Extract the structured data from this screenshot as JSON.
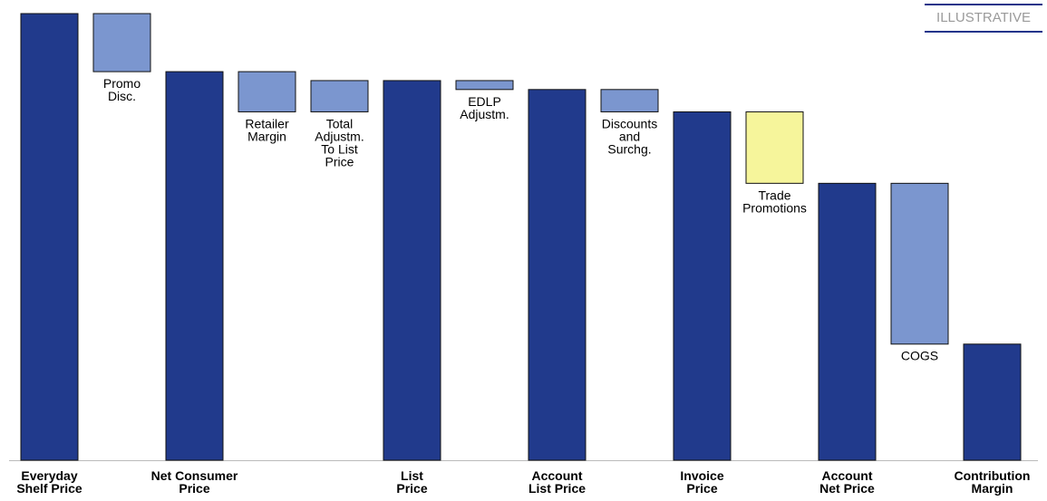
{
  "chart_data": {
    "type": "waterfall",
    "badge": "ILLUSTRATIVE",
    "categories": [
      "Everyday\nShelf Price",
      "Promo\nDisc.",
      "Net Consumer\nPrice",
      "Retailer\nMargin",
      "Total\nAdjustm.\nTo List\nPrice",
      "List\nPrice",
      "EDLP\nAdjustm.",
      "Account\nList Price",
      "Discounts\nand\nSurchg.",
      "Invoice\nPrice",
      "Trade\nPromotions",
      "Account\nNet Price",
      "COGS",
      "Contribution\nMargin"
    ],
    "measures": [
      "absolute",
      "relative",
      "absolute",
      "relative",
      "relative",
      "absolute",
      "relative",
      "absolute",
      "relative",
      "absolute",
      "relative",
      "absolute",
      "relative",
      "absolute"
    ],
    "values": [
      100,
      -13,
      87,
      -9,
      7,
      85,
      -2,
      83,
      -5,
      78,
      -16,
      62,
      -36,
      26
    ],
    "colors": [
      "#213a8c",
      "#7b96cf",
      "#213a8c",
      "#7b96cf",
      "#7b96cf",
      "#213a8c",
      "#7b96cf",
      "#213a8c",
      "#7b96cf",
      "#213a8c",
      "#f6f59b",
      "#213a8c",
      "#7b96cf",
      "#213a8c"
    ],
    "ylim": [
      0,
      100
    ]
  }
}
